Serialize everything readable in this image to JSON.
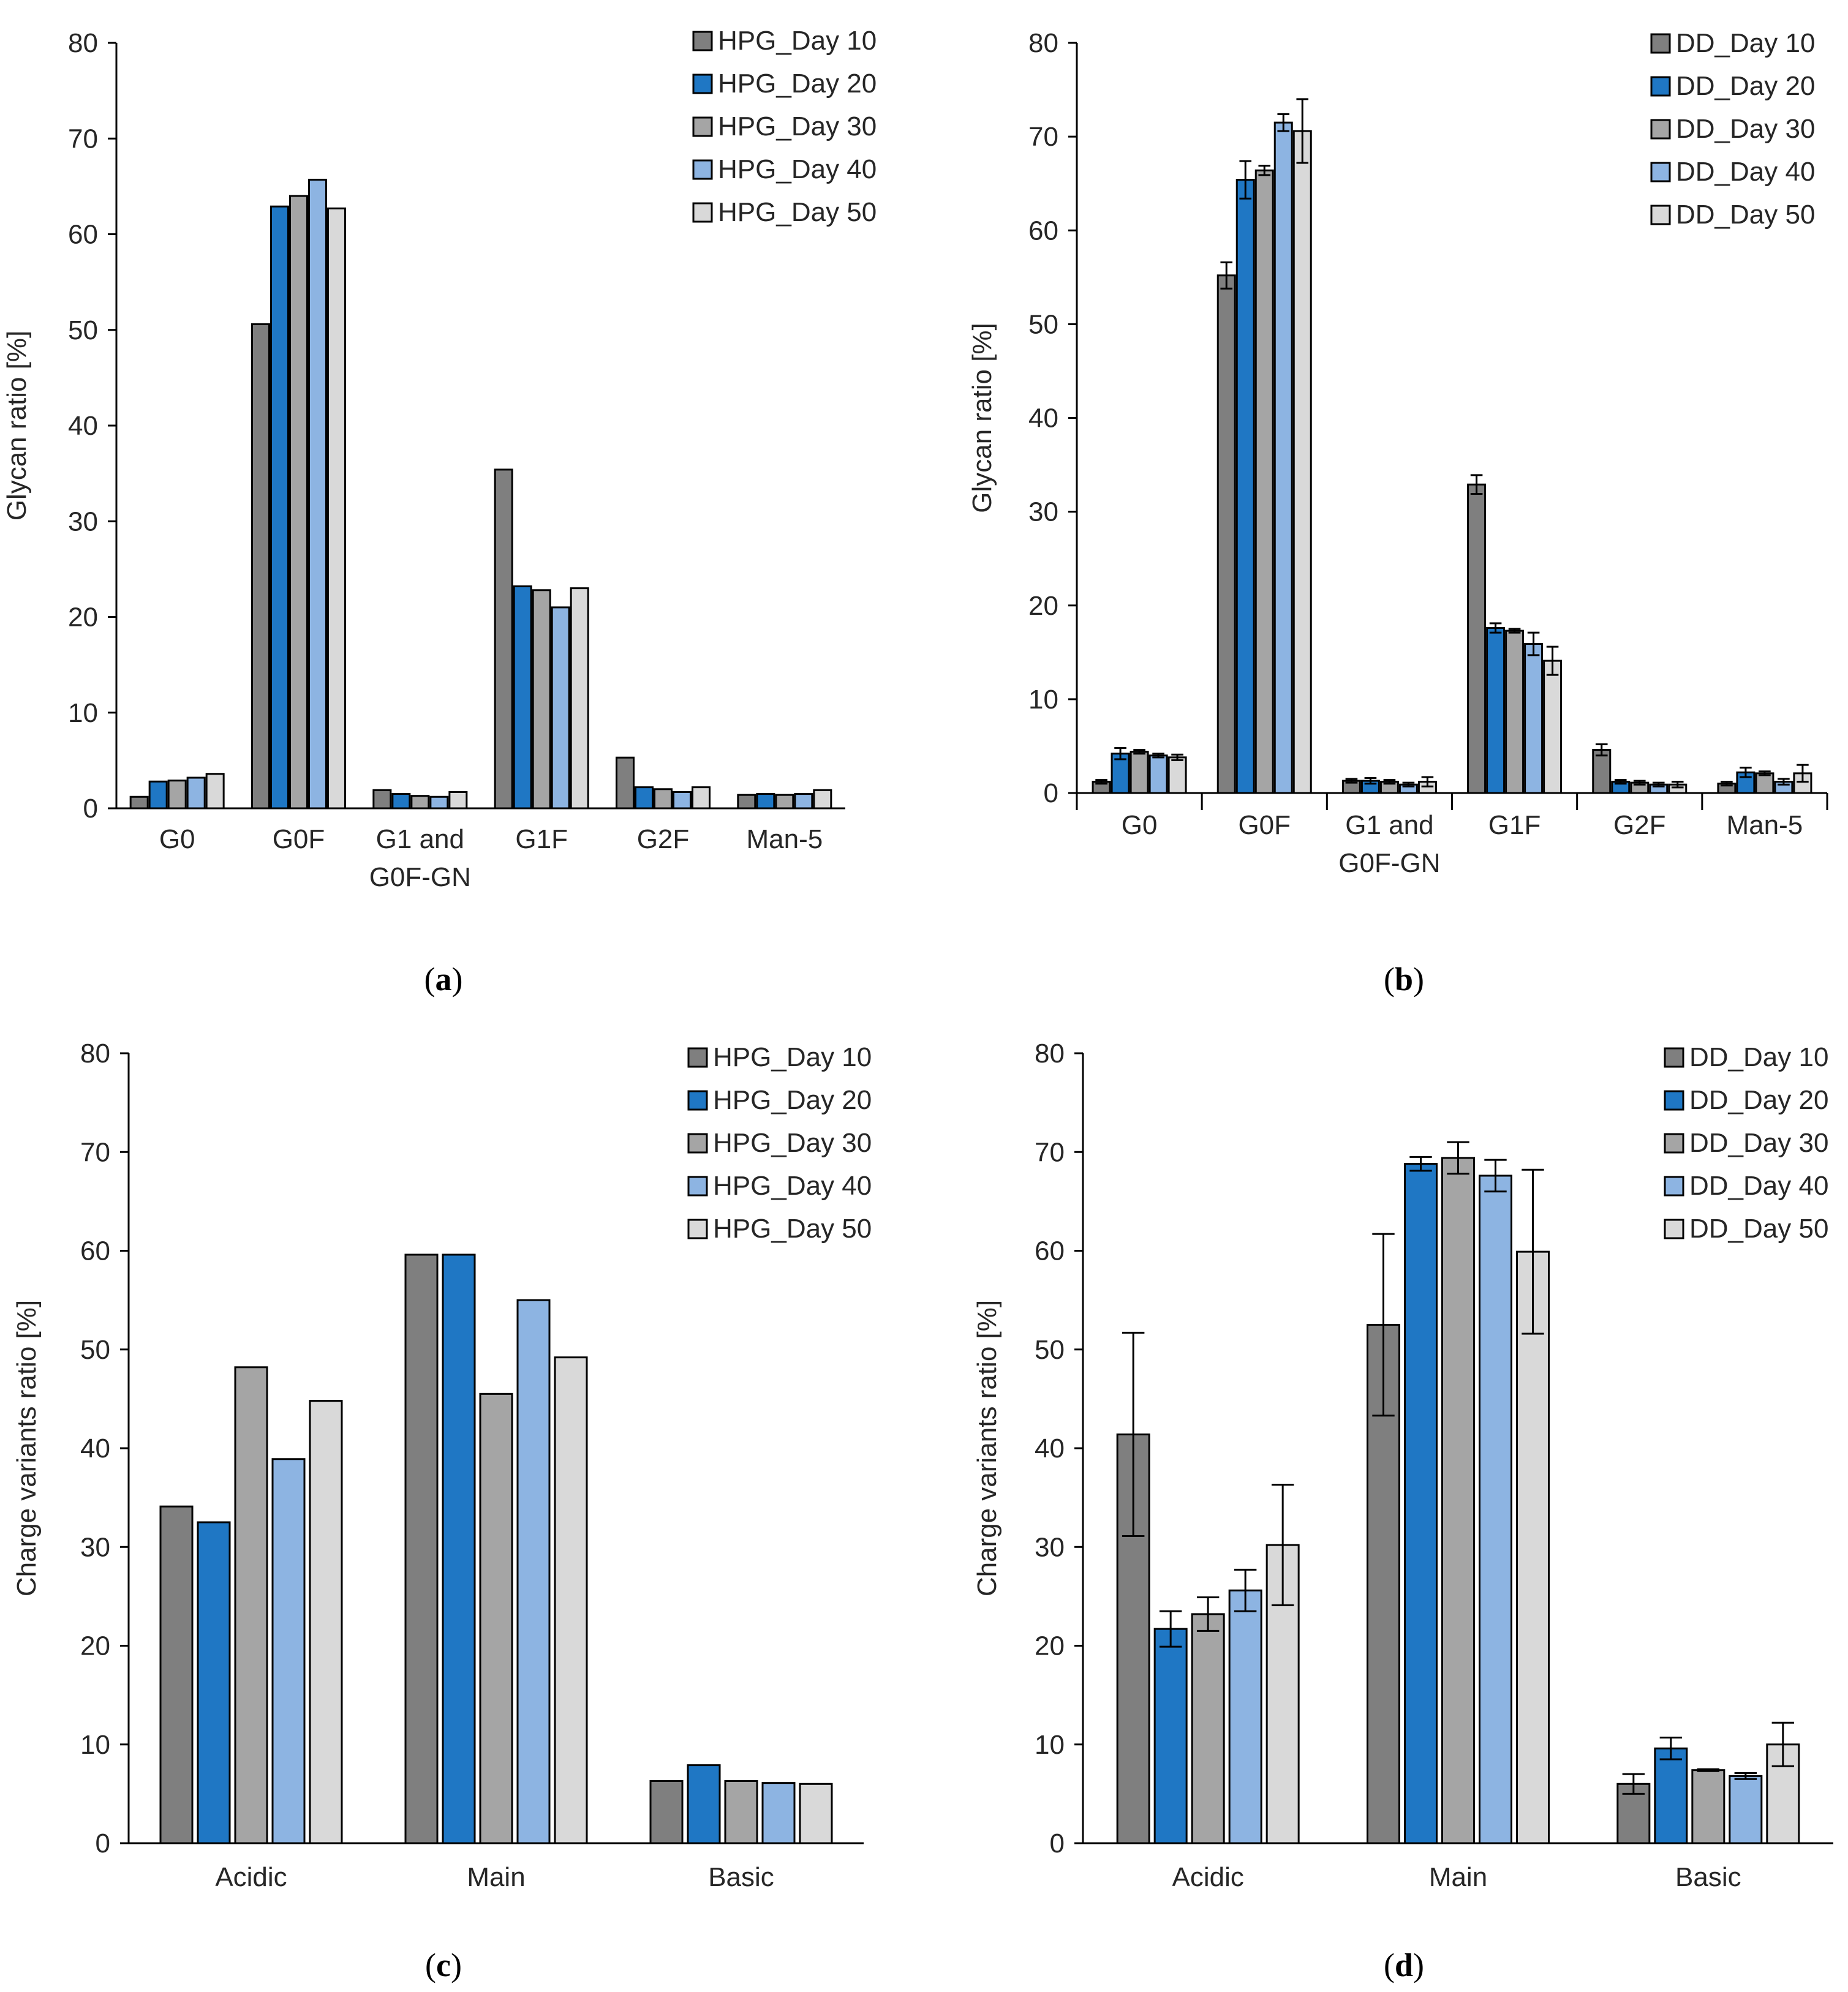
{
  "chart_data": [
    {
      "id": "a",
      "type": "bar",
      "title": "",
      "xlabel": "",
      "ylabel": "Glycan ratio [%]",
      "ylim": [
        0,
        80
      ],
      "yticks": [
        0,
        10,
        20,
        30,
        40,
        50,
        60,
        70,
        80
      ],
      "categories": [
        [
          "G0"
        ],
        [
          "G0F"
        ],
        [
          "G1 and",
          "G0F-GN"
        ],
        [
          "G1F"
        ],
        [
          "G2F"
        ],
        [
          "Man-5"
        ]
      ],
      "legend_position": "top-right",
      "caption": "a",
      "series": [
        {
          "name": "HPG_Day 10",
          "color": "#7f7f7f",
          "values": [
            1.2,
            50.6,
            1.9,
            35.4,
            5.3,
            1.4
          ]
        },
        {
          "name": "HPG_Day 20",
          "color": "#1f77c4",
          "values": [
            2.8,
            62.9,
            1.5,
            23.2,
            2.2,
            1.5
          ]
        },
        {
          "name": "HPG_Day 30",
          "color": "#a5a5a5",
          "values": [
            2.9,
            64.0,
            1.3,
            22.8,
            2.0,
            1.4
          ]
        },
        {
          "name": "HPG_Day 40",
          "color": "#8db4e2",
          "values": [
            3.2,
            65.7,
            1.2,
            21.0,
            1.7,
            1.5
          ]
        },
        {
          "name": "HPG_Day 50",
          "color": "#d9d9d9",
          "values": [
            3.6,
            62.7,
            1.7,
            23.0,
            2.2,
            1.9
          ]
        }
      ]
    },
    {
      "id": "b",
      "type": "bar",
      "title": "",
      "xlabel": "",
      "ylabel": "Glycan ratio [%]",
      "ylim": [
        0,
        80
      ],
      "yticks": [
        0,
        10,
        20,
        30,
        40,
        50,
        60,
        70,
        80
      ],
      "categories": [
        [
          "G0"
        ],
        [
          "G0F"
        ],
        [
          "G1 and",
          "G0F-GN"
        ],
        [
          "G1F"
        ],
        [
          "G2F"
        ],
        [
          "Man-5"
        ]
      ],
      "legend_position": "top-right",
      "caption": "b",
      "series": [
        {
          "name": "DD_Day 10",
          "color": "#7f7f7f",
          "values": [
            1.2,
            55.2,
            1.3,
            32.9,
            4.6,
            1.0
          ],
          "errors": [
            0.2,
            1.4,
            0.2,
            1.0,
            0.6,
            0.2
          ]
        },
        {
          "name": "DD_Day 20",
          "color": "#1f77c4",
          "values": [
            4.2,
            65.4,
            1.3,
            17.6,
            1.2,
            2.2
          ],
          "errors": [
            0.6,
            2.0,
            0.3,
            0.5,
            0.2,
            0.5
          ]
        },
        {
          "name": "DD_Day 30",
          "color": "#a5a5a5",
          "values": [
            4.4,
            66.4,
            1.2,
            17.3,
            1.1,
            2.1
          ],
          "errors": [
            0.2,
            0.5,
            0.2,
            0.2,
            0.2,
            0.2
          ]
        },
        {
          "name": "DD_Day 40",
          "color": "#8db4e2",
          "values": [
            4.0,
            71.5,
            0.9,
            15.9,
            0.9,
            1.2
          ],
          "errors": [
            0.2,
            0.9,
            0.2,
            1.2,
            0.2,
            0.3
          ]
        },
        {
          "name": "DD_Day 50",
          "color": "#d9d9d9",
          "values": [
            3.8,
            70.6,
            1.2,
            14.1,
            0.9,
            2.1
          ],
          "errors": [
            0.3,
            3.4,
            0.5,
            1.5,
            0.3,
            0.9
          ]
        }
      ]
    },
    {
      "id": "c",
      "type": "bar",
      "title": "",
      "xlabel": "",
      "ylabel": "Charge variants ratio [%]",
      "ylim": [
        0,
        80
      ],
      "yticks": [
        0,
        10,
        20,
        30,
        40,
        50,
        60,
        70,
        80
      ],
      "categories": [
        [
          "Acidic"
        ],
        [
          "Main"
        ],
        [
          "Basic"
        ]
      ],
      "legend_position": "top-right",
      "caption": "c",
      "series": [
        {
          "name": "HPG_Day 10",
          "color": "#7f7f7f",
          "values": [
            34.1,
            59.6,
            6.3
          ]
        },
        {
          "name": "HPG_Day 20",
          "color": "#1f77c4",
          "values": [
            32.5,
            59.6,
            7.9
          ]
        },
        {
          "name": "HPG_Day 30",
          "color": "#a5a5a5",
          "values": [
            48.2,
            45.5,
            6.3
          ]
        },
        {
          "name": "HPG_Day 40",
          "color": "#8db4e2",
          "values": [
            38.9,
            55.0,
            6.1
          ]
        },
        {
          "name": "HPG_Day 50",
          "color": "#d9d9d9",
          "values": [
            44.8,
            49.2,
            6.0
          ]
        }
      ]
    },
    {
      "id": "d",
      "type": "bar",
      "title": "",
      "xlabel": "",
      "ylabel": "Charge variants ratio [%]",
      "ylim": [
        0,
        80
      ],
      "yticks": [
        0,
        10,
        20,
        30,
        40,
        50,
        60,
        70,
        80
      ],
      "categories": [
        [
          "Acidic"
        ],
        [
          "Main"
        ],
        [
          "Basic"
        ]
      ],
      "legend_position": "top-right",
      "caption": "d",
      "series": [
        {
          "name": "DD_Day 10",
          "color": "#7f7f7f",
          "values": [
            41.4,
            52.5,
            6.0
          ],
          "errors": [
            10.3,
            9.2,
            1.0
          ]
        },
        {
          "name": "DD_Day 20",
          "color": "#1f77c4",
          "values": [
            21.7,
            68.8,
            9.6
          ],
          "errors": [
            1.8,
            0.7,
            1.1
          ]
        },
        {
          "name": "DD_Day 30",
          "color": "#a5a5a5",
          "values": [
            23.2,
            69.4,
            7.4
          ],
          "errors": [
            1.7,
            1.6,
            0.1
          ]
        },
        {
          "name": "DD_Day 40",
          "color": "#8db4e2",
          "values": [
            25.6,
            67.6,
            6.8
          ],
          "errors": [
            2.1,
            1.6,
            0.3
          ]
        },
        {
          "name": "DD_Day 50",
          "color": "#d9d9d9",
          "values": [
            30.2,
            59.9,
            10.0
          ],
          "errors": [
            6.1,
            8.3,
            2.2
          ]
        }
      ]
    }
  ]
}
